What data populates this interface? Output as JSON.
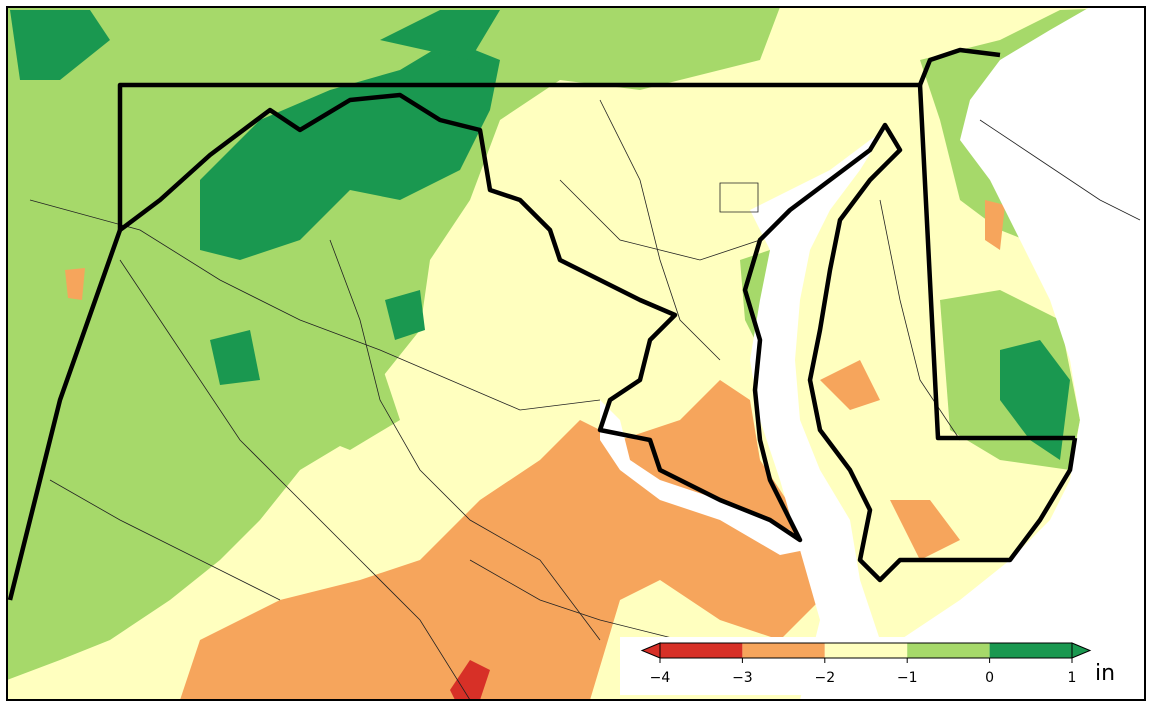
{
  "legend": {
    "unit": "in",
    "ticks": [
      {
        "value": -4,
        "label": "−4"
      },
      {
        "value": -3,
        "label": "−3"
      },
      {
        "value": -2,
        "label": "−2"
      },
      {
        "value": -1,
        "label": "−1"
      },
      {
        "value": 0,
        "label": "0"
      },
      {
        "value": 1,
        "label": "1"
      }
    ],
    "colors": [
      "#d62f27",
      "#d73027",
      "#f6a55c",
      "#ffffbf",
      "#a6d96a",
      "#1a9850",
      "#1a9850"
    ]
  }
}
